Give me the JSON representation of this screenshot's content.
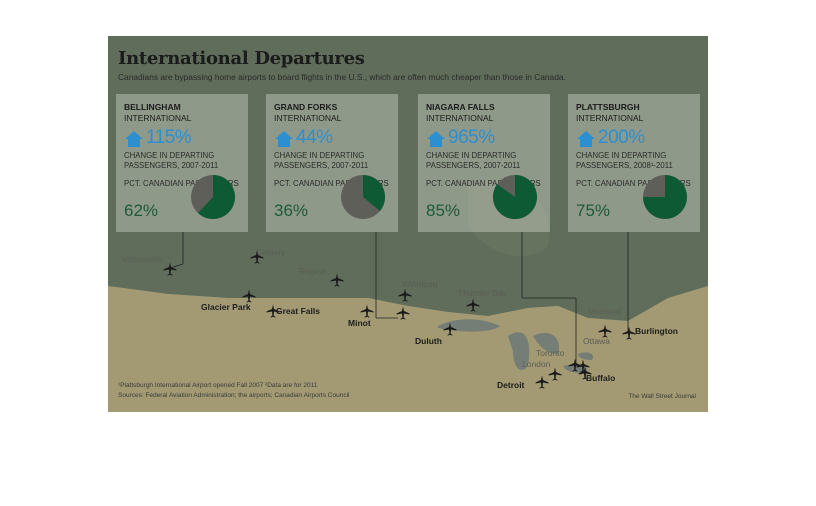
{
  "title": "International Departures",
  "subtitle": "Canadians are bypassing home airports to board flights in the U.S., which are often much cheaper than those in Canada.",
  "colors": {
    "change_text": "#2b8fd0",
    "canadian_share": "#0e5a35",
    "non_canadian": "#5f5f5a",
    "us_land": "#b6a679",
    "canada_land": "#5d6b58",
    "water": "#7b8277"
  },
  "airports": [
    {
      "name": "BELLINGHAM",
      "sub": "INTERNATIONAL",
      "change": "115%",
      "change_label": "CHANGE IN DEPARTING PASSENGERS, 2007-2011",
      "canadian_label": "PCT. CANADIAN PASSENGERS",
      "canadian": "62%",
      "canadian_value": 0.62,
      "icon": "house-icon"
    },
    {
      "name": "GRAND FORKS",
      "sub": "INTERNATIONAL",
      "change": "44%",
      "change_label": "CHANGE IN DEPARTING PASSENGERS, 2007-2011",
      "canadian_label": "PCT. CANADIAN PASSENGERS",
      "canadian": "36%",
      "canadian_value": 0.36,
      "icon": "house-icon"
    },
    {
      "name": "NIAGARA FALLS",
      "sub": "INTERNATIONAL",
      "change": "965%",
      "change_label": "CHANGE IN DEPARTING PASSENGERS, 2007-2011",
      "canadian_label": "PCT. CANADIAN PASSENGERS",
      "canadian": "85%",
      "canadian_value": 0.85,
      "icon": "house-icon"
    },
    {
      "name": "PLATTSBURGH",
      "sub": "INTERNATIONAL",
      "change": "200%",
      "change_label": "CHANGE IN DEPARTING PASSENGERS, 2008¹-2011",
      "canadian_label": "PCT. CANADIAN PASSENGERS",
      "canadian": "75%",
      "canadian_value": 0.75,
      "icon": "house-icon"
    }
  ],
  "cities": {
    "vancouver": "Vancouver",
    "calgary": "Calgary",
    "regina": "Regina",
    "winnipeg": "Winnipeg",
    "thunder_bay": "Thunder Bay",
    "montreal": "Montreal",
    "ottawa": "Ottawa",
    "toronto": "Toronto",
    "london": "London",
    "glacier_park": "Glacier Park",
    "great_falls": "Great Falls",
    "minot": "Minot",
    "duluth": "Duluth",
    "detroit": "Detroit",
    "buffalo": "Buffalo",
    "burlington": "Burlington"
  },
  "footnote1": "¹Plattsburgh International Airport opened Fall 2007    ²Data are for 2011",
  "footnote2": "Sources: Federal Aviation Administration; the airports; Canadian Airports Council",
  "credit": "The Wall Street Journal"
}
